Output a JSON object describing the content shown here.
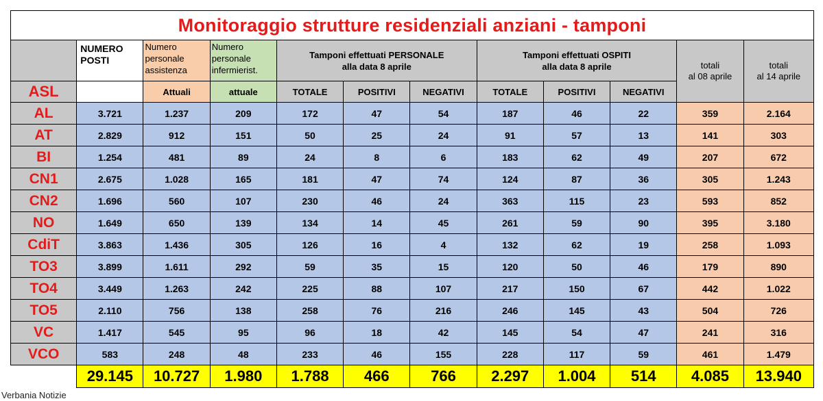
{
  "title": "Monitoraggio strutture residenziali anziani - tamponi",
  "headers": {
    "numero_posti": "NUMERO POSTI",
    "personale_assistenza": "Numero personale assistenza",
    "personale_infermieristico": "Numero personale infermierist.",
    "tamponi_personale_line1": "Tamponi effettuati PERSONALE",
    "tamponi_personale_line2": "alla data 8 aprile",
    "tamponi_ospiti_line1": "Tamponi effettuati OSPITI",
    "tamponi_ospiti_line2": "alla data 8 aprile",
    "totali_08_line1": "totali",
    "totali_08_line2": "al 08 aprile",
    "totali_14_line1": "totali",
    "totali_14_line2": "al 14 aprile"
  },
  "subheaders": {
    "asl": "ASL",
    "attuali": "Attuali",
    "attuale": "attuale",
    "totale_p": "TOTALE",
    "positivi_p": "POSITIVI",
    "negativi_p": "NEGATIVI",
    "totale_o": "TOTALE",
    "positivi_o": "POSITIVI",
    "negativi_o": "NEGATIVI"
  },
  "rows": [
    [
      "AL",
      "3.721",
      "1.237",
      "209",
      "172",
      "47",
      "54",
      "187",
      "46",
      "22",
      "359",
      "2.164"
    ],
    [
      "AT",
      "2.829",
      "912",
      "151",
      "50",
      "25",
      "24",
      "91",
      "57",
      "13",
      "141",
      "303"
    ],
    [
      "BI",
      "1.254",
      "481",
      "89",
      "24",
      "8",
      "6",
      "183",
      "62",
      "49",
      "207",
      "672"
    ],
    [
      "CN1",
      "2.675",
      "1.028",
      "165",
      "181",
      "47",
      "74",
      "124",
      "87",
      "36",
      "305",
      "1.243"
    ],
    [
      "CN2",
      "1.696",
      "560",
      "107",
      "230",
      "46",
      "24",
      "363",
      "115",
      "23",
      "593",
      "852"
    ],
    [
      "NO",
      "1.649",
      "650",
      "139",
      "134",
      "14",
      "45",
      "261",
      "59",
      "90",
      "395",
      "3.180"
    ],
    [
      "CdiT",
      "3.863",
      "1.436",
      "305",
      "126",
      "16",
      "4",
      "132",
      "62",
      "19",
      "258",
      "1.093"
    ],
    [
      "TO3",
      "3.899",
      "1.611",
      "292",
      "59",
      "35",
      "15",
      "120",
      "50",
      "46",
      "179",
      "890"
    ],
    [
      "TO4",
      "3.449",
      "1.263",
      "242",
      "225",
      "88",
      "107",
      "217",
      "150",
      "67",
      "442",
      "1.022"
    ],
    [
      "TO5",
      "2.110",
      "756",
      "138",
      "258",
      "76",
      "216",
      "246",
      "145",
      "43",
      "504",
      "726"
    ],
    [
      "VC",
      "1.417",
      "545",
      "95",
      "96",
      "18",
      "42",
      "145",
      "54",
      "47",
      "241",
      "316"
    ],
    [
      "VCO",
      "583",
      "248",
      "48",
      "233",
      "46",
      "155",
      "228",
      "117",
      "59",
      "461",
      "1.479"
    ]
  ],
  "totals": [
    "29.145",
    "10.727",
    "1.980",
    "1.788",
    "466",
    "766",
    "2.297",
    "1.004",
    "514",
    "4.085",
    "13.940"
  ],
  "footer": "Verbania Notizie",
  "colors": {
    "title_red": "#e31b1b",
    "asl_gray": "#c8c8c8",
    "data_blue": "#b4c7e7",
    "totals_peach": "#f8cbad",
    "header_peach": "#f9cda9",
    "header_green": "#c6e0b4",
    "grand_total_yellow": "#ffff00"
  }
}
